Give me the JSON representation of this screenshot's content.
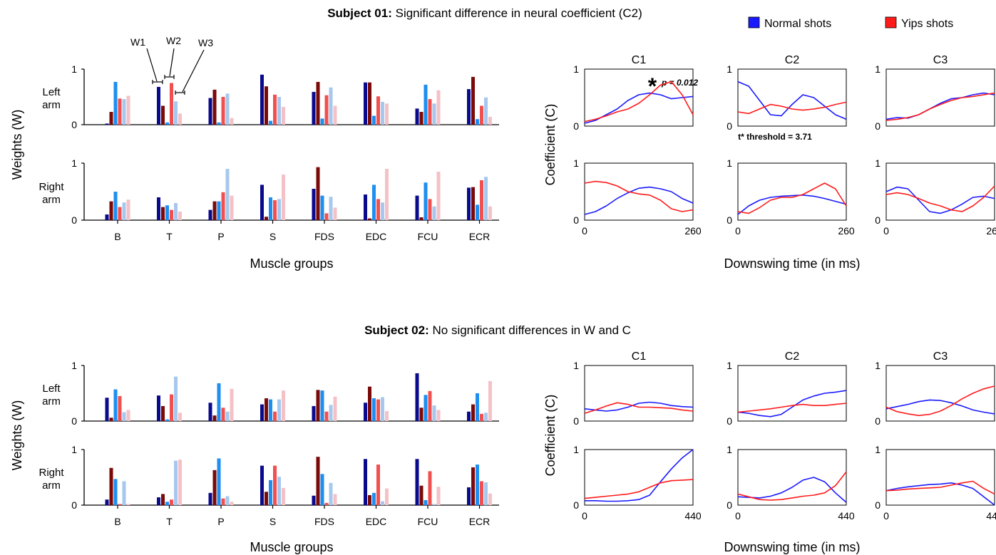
{
  "legend": {
    "items": [
      {
        "label": "Normal shots",
        "color": "#1a1aff"
      },
      {
        "label": "Yips shots",
        "color": "#ff1a1a"
      }
    ]
  },
  "bar_colors": {
    "w1_normal": "#0a0a8c",
    "w1_yips": "#7a0a0a",
    "w2_normal": "#1e8ff0",
    "w2_yips": "#f05050",
    "w3_normal": "#a6c8ee",
    "w3_yips": "#f4c2c6"
  },
  "line_colors": {
    "normal": "#1a1aff",
    "yips": "#ff1a1a"
  },
  "w_labels": [
    "W1",
    "W2",
    "W3"
  ],
  "chart_data": [
    {
      "type": "bar",
      "subject": "subject01",
      "title_bold": "Subject 01:",
      "title_rest": " Significant difference in neural coefficient (C2)",
      "ylabel": "Weights (W)",
      "xlabel": "Muscle groups",
      "ylim": [
        0,
        1
      ],
      "yticks": [
        "0",
        "1"
      ],
      "categories": [
        "B",
        "T",
        "P",
        "S",
        "FDS",
        "EDC",
        "FCU",
        "ECR"
      ],
      "rows": [
        {
          "label_1": "Left",
          "label_2": "arm",
          "series": [
            {
              "name": "W1 normal",
              "values": [
                0.02,
                0.68,
                0.48,
                0.9,
                0.59,
                0.76,
                0.29,
                0.64
              ]
            },
            {
              "name": "W1 yips",
              "values": [
                0.23,
                0.34,
                0.63,
                0.69,
                0.77,
                0.76,
                0.23,
                0.86
              ]
            },
            {
              "name": "W2 normal",
              "values": [
                0.77,
                0.04,
                0.04,
                0.07,
                0.11,
                0.16,
                0.72,
                0.1
              ]
            },
            {
              "name": "W2 yips",
              "values": [
                0.47,
                0.75,
                0.5,
                0.54,
                0.53,
                0.51,
                0.46,
                0.34
              ]
            },
            {
              "name": "W3 normal",
              "values": [
                0.46,
                0.42,
                0.56,
                0.5,
                0.67,
                0.41,
                0.38,
                0.49
              ]
            },
            {
              "name": "W3 yips",
              "values": [
                0.52,
                0.2,
                0.12,
                0.32,
                0.34,
                0.38,
                0.62,
                0.14
              ]
            }
          ]
        },
        {
          "label_1": "Right",
          "label_2": "arm",
          "series": [
            {
              "name": "W1 normal",
              "values": [
                0.1,
                0.4,
                0.18,
                0.62,
                0.55,
                0.45,
                0.43,
                0.57
              ]
            },
            {
              "name": "W1 yips",
              "values": [
                0.33,
                0.23,
                0.33,
                0.06,
                0.93,
                0.03,
                0.05,
                0.58
              ]
            },
            {
              "name": "W2 normal",
              "values": [
                0.5,
                0.26,
                0.33,
                0.4,
                0.43,
                0.62,
                0.66,
                0.27
              ]
            },
            {
              "name": "W2 yips",
              "values": [
                0.23,
                0.18,
                0.49,
                0.35,
                0.12,
                0.37,
                0.37,
                0.7
              ]
            },
            {
              "name": "W3 normal",
              "values": [
                0.31,
                0.3,
                0.9,
                0.37,
                0.41,
                0.31,
                0.24,
                0.76
              ]
            },
            {
              "name": "W3 yips",
              "values": [
                0.36,
                0.15,
                0.43,
                0.8,
                0.22,
                0.9,
                0.85,
                0.24
              ]
            }
          ]
        }
      ]
    },
    {
      "type": "line",
      "subject": "subject01",
      "ylabel": "Coefficient (C)",
      "xlabel": "Downswing time (in ms)",
      "xlim": [
        0,
        260
      ],
      "xticks": [
        "0",
        "260"
      ],
      "ylim": [
        0,
        1
      ],
      "yticks": [
        "0",
        "1"
      ],
      "columns": [
        "C1",
        "C2",
        "C3"
      ],
      "annotation_star": "*",
      "annotation_p": "p = 0.012",
      "annotation_threshold": "t* threshold = 3.71",
      "x": [
        0,
        26,
        52,
        78,
        104,
        130,
        156,
        182,
        208,
        234,
        260
      ],
      "rows": [
        [
          {
            "normal": [
              0.05,
              0.1,
              0.2,
              0.3,
              0.45,
              0.55,
              0.58,
              0.55,
              0.48,
              0.5,
              0.52
            ],
            "yips": [
              0.08,
              0.12,
              0.18,
              0.25,
              0.3,
              0.4,
              0.55,
              0.72,
              0.78,
              0.55,
              0.2
            ]
          },
          {
            "normal": [
              0.78,
              0.7,
              0.45,
              0.2,
              0.18,
              0.38,
              0.55,
              0.5,
              0.35,
              0.2,
              0.12
            ],
            "yips": [
              0.25,
              0.22,
              0.3,
              0.38,
              0.35,
              0.3,
              0.28,
              0.3,
              0.33,
              0.38,
              0.42
            ]
          },
          {
            "normal": [
              0.12,
              0.15,
              0.14,
              0.2,
              0.3,
              0.4,
              0.48,
              0.5,
              0.55,
              0.58,
              0.55
            ],
            "yips": [
              0.1,
              0.12,
              0.15,
              0.2,
              0.3,
              0.38,
              0.45,
              0.5,
              0.52,
              0.55,
              0.58
            ]
          }
        ],
        [
          {
            "normal": [
              0.1,
              0.15,
              0.25,
              0.38,
              0.48,
              0.56,
              0.58,
              0.55,
              0.5,
              0.38,
              0.3
            ],
            "yips": [
              0.65,
              0.68,
              0.66,
              0.6,
              0.5,
              0.46,
              0.44,
              0.35,
              0.2,
              0.15,
              0.18
            ]
          },
          {
            "normal": [
              0.1,
              0.25,
              0.35,
              0.4,
              0.42,
              0.43,
              0.44,
              0.42,
              0.38,
              0.33,
              0.28
            ],
            "yips": [
              0.15,
              0.12,
              0.22,
              0.35,
              0.4,
              0.4,
              0.45,
              0.55,
              0.65,
              0.55,
              0.25
            ]
          },
          {
            "normal": [
              0.5,
              0.58,
              0.55,
              0.35,
              0.15,
              0.12,
              0.18,
              0.28,
              0.4,
              0.42,
              0.38
            ],
            "yips": [
              0.45,
              0.48,
              0.45,
              0.38,
              0.3,
              0.25,
              0.18,
              0.15,
              0.25,
              0.4,
              0.6
            ]
          }
        ]
      ]
    },
    {
      "type": "bar",
      "subject": "subject02",
      "title_bold": "Subject 02:",
      "title_rest": " No significant differences in W and C",
      "ylabel": "Weights (W)",
      "xlabel": "Muscle groups",
      "ylim": [
        0,
        1
      ],
      "yticks": [
        "0",
        "1"
      ],
      "categories": [
        "B",
        "T",
        "P",
        "S",
        "FDS",
        "EDC",
        "FCU",
        "ECR"
      ],
      "rows": [
        {
          "label_1": "Left",
          "label_2": "arm",
          "series": [
            {
              "name": "W1 normal",
              "values": [
                0.42,
                0.46,
                0.33,
                0.3,
                0.27,
                0.33,
                0.86,
                0.17
              ]
            },
            {
              "name": "W1 yips",
              "values": [
                0.06,
                0.27,
                0.1,
                0.41,
                0.56,
                0.62,
                0.24,
                0.3
              ]
            },
            {
              "name": "W2 normal",
              "values": [
                0.57,
                0.03,
                0.68,
                0.39,
                0.55,
                0.41,
                0.47,
                0.5
              ]
            },
            {
              "name": "W2 yips",
              "values": [
                0.45,
                0.48,
                0.24,
                0.17,
                0.17,
                0.39,
                0.54,
                0.13
              ]
            },
            {
              "name": "W3 normal",
              "values": [
                0.16,
                0.8,
                0.17,
                0.39,
                0.29,
                0.43,
                0.28,
                0.15
              ]
            },
            {
              "name": "W3 yips",
              "values": [
                0.2,
                0.15,
                0.58,
                0.55,
                0.44,
                0.18,
                0.2,
                0.72
              ]
            }
          ]
        },
        {
          "label_1": "Right",
          "label_2": "arm",
          "series": [
            {
              "name": "W1 normal",
              "values": [
                0.1,
                0.14,
                0.22,
                0.71,
                0.17,
                0.83,
                0.83,
                0.32
              ]
            },
            {
              "name": "W1 yips",
              "values": [
                0.67,
                0.2,
                0.63,
                0.24,
                0.87,
                0.18,
                0.35,
                0.68
              ]
            },
            {
              "name": "W2 normal",
              "values": [
                0.47,
                0.06,
                0.84,
                0.45,
                0.56,
                0.22,
                0.09,
                0.73
              ]
            },
            {
              "name": "W2 yips",
              "values": [
                0.02,
                0.1,
                0.12,
                0.71,
                0.04,
                0.73,
                0.61,
                0.43
              ]
            },
            {
              "name": "W3 normal",
              "values": [
                0.43,
                0.8,
                0.16,
                0.51,
                0.4,
                0.07,
                0.02,
                0.41
              ]
            },
            {
              "name": "W3 yips",
              "values": [
                0.02,
                0.82,
                0.06,
                0.31,
                0.2,
                0.3,
                0.33,
                0.21
              ]
            }
          ]
        }
      ]
    },
    {
      "type": "line",
      "subject": "subject02",
      "ylabel": "Coefficient (C)",
      "xlabel": "Downswing time (in ms)",
      "xlim": [
        0,
        440
      ],
      "xticks": [
        "0",
        "440"
      ],
      "ylim": [
        0,
        1
      ],
      "yticks": [
        "0",
        "1"
      ],
      "columns": [
        "C1",
        "C2",
        "C3"
      ],
      "x": [
        0,
        44,
        88,
        132,
        176,
        220,
        264,
        308,
        352,
        396,
        440
      ],
      "rows": [
        [
          {
            "normal": [
              0.22,
              0.2,
              0.18,
              0.2,
              0.25,
              0.32,
              0.34,
              0.32,
              0.28,
              0.26,
              0.25
            ],
            "yips": [
              0.14,
              0.2,
              0.27,
              0.33,
              0.3,
              0.25,
              0.25,
              0.24,
              0.23,
              0.2,
              0.18
            ]
          },
          {
            "normal": [
              0.16,
              0.14,
              0.1,
              0.08,
              0.12,
              0.25,
              0.38,
              0.45,
              0.5,
              0.52,
              0.55
            ],
            "yips": [
              0.16,
              0.18,
              0.2,
              0.22,
              0.25,
              0.28,
              0.3,
              0.28,
              0.28,
              0.3,
              0.32
            ]
          },
          {
            "normal": [
              0.22,
              0.26,
              0.3,
              0.35,
              0.38,
              0.37,
              0.33,
              0.27,
              0.2,
              0.16,
              0.13
            ],
            "yips": [
              0.25,
              0.17,
              0.13,
              0.1,
              0.12,
              0.18,
              0.28,
              0.4,
              0.5,
              0.58,
              0.63
            ]
          }
        ],
        [
          {
            "normal": [
              0.08,
              0.08,
              0.07,
              0.07,
              0.08,
              0.1,
              0.18,
              0.42,
              0.65,
              0.85,
              1.0
            ],
            "yips": [
              0.12,
              0.14,
              0.16,
              0.18,
              0.2,
              0.24,
              0.32,
              0.4,
              0.44,
              0.45,
              0.46
            ]
          },
          {
            "normal": [
              0.15,
              0.14,
              0.13,
              0.16,
              0.22,
              0.32,
              0.45,
              0.5,
              0.42,
              0.22,
              0.05
            ],
            "yips": [
              0.2,
              0.15,
              0.1,
              0.09,
              0.1,
              0.13,
              0.16,
              0.18,
              0.22,
              0.35,
              0.6
            ]
          },
          {
            "normal": [
              0.26,
              0.3,
              0.33,
              0.35,
              0.37,
              0.38,
              0.4,
              0.36,
              0.3,
              0.15,
              0.0
            ],
            "yips": [
              0.26,
              0.27,
              0.29,
              0.3,
              0.31,
              0.32,
              0.36,
              0.4,
              0.43,
              0.3,
              0.2
            ]
          }
        ]
      ]
    }
  ]
}
